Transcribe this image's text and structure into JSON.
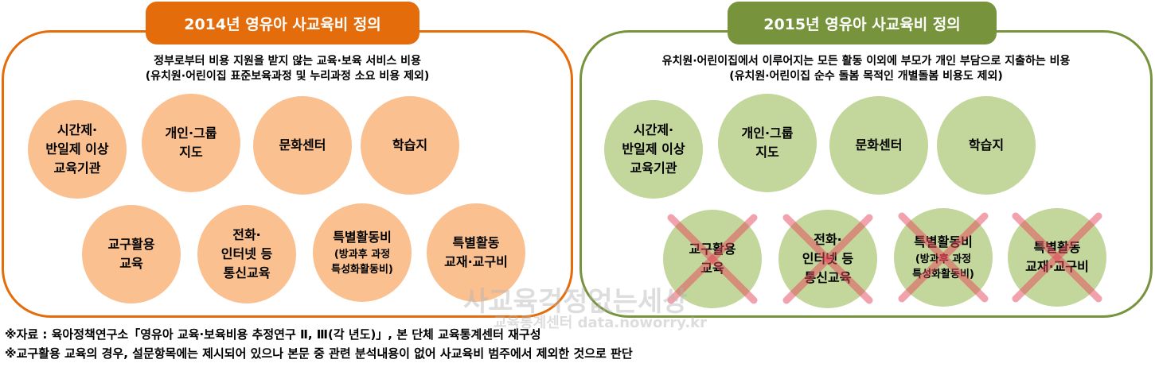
{
  "left": {
    "title": "2014년 영유아 사교육비 정의",
    "line1": "정부로부터 비용 지원을 받지 않는 교육·보육 서비스 비용",
    "line2": "(유치원·어린이집 표준보육과정 및 누리과정 소요 비용 제외)",
    "accent": "#e46c0a",
    "circle_color": "#fac090",
    "items": [
      [
        "시간제·",
        "반일제 이상",
        "교육기관"
      ],
      [
        "개인·그룹",
        "지도"
      ],
      [
        "문화센터"
      ],
      [
        "학습지"
      ],
      [
        "교구활용",
        "교육"
      ],
      [
        "전화·",
        "인터넷 등",
        "통신교육"
      ],
      [
        "특별활동비",
        "(방과후 과정",
        "특성화활동비)"
      ],
      [
        "특별활동",
        "교재·교구비"
      ]
    ]
  },
  "right": {
    "title": "2015년 영유아 사교육비 정의",
    "line1": "유치원·어린이집에서 이루어지는 모든 활동 이외에 부모가 개인 부담으로 지출하는 비용",
    "line2": "(유치원·어린이집 순수 돌봄 목적인 개별돌봄 비용도 제외)",
    "accent": "#77933c",
    "circle_color": "#c3d69b",
    "items": [
      [
        "시간제·",
        "반일제 이상",
        "교육기관"
      ],
      [
        "개인·그룹",
        "지도"
      ],
      [
        "문화센터"
      ],
      [
        "학습지"
      ],
      [
        "교구활용",
        "교육"
      ],
      [
        "전화·",
        "인터넷 등",
        "통신교육"
      ],
      [
        "특별활동비",
        "(방과후 과정",
        "특성화활동비)"
      ],
      [
        "특별활동",
        "교재·교구비"
      ]
    ],
    "excluded": [
      4,
      5,
      6,
      7
    ]
  },
  "notes": [
    "※자료 : 육아정책연구소「영유아 교육·보육비용 추정연구 Ⅱ, Ⅲ(각 년도)」, 본 단체 교육통계센터 재구성",
    "※교구활용 교육의 경우, 설문항목에는 제시되어 있으나 본문 중 관련 분석내용이 없어 사교육비 범주에서 제외한 것으로 판단"
  ],
  "watermark": {
    "line1": "사교육걱정없는세상",
    "line2": "교육통계센터 data.noworry.kr"
  }
}
